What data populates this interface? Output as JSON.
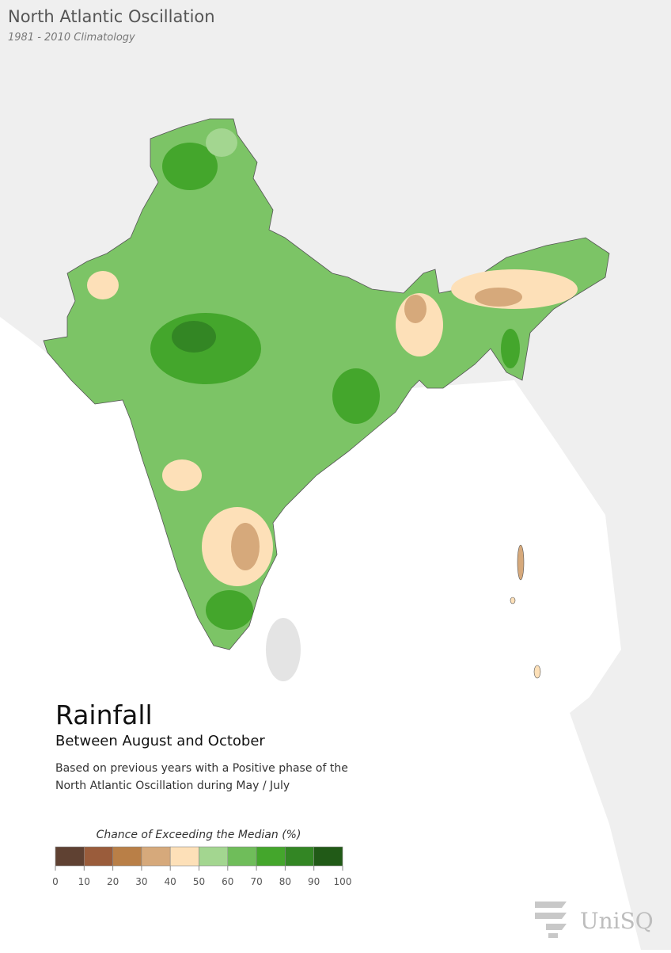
{
  "header": {
    "title": "North Atlantic Oscillation",
    "subtitle": "1981 - 2010 Climatology"
  },
  "panel": {
    "title": "Rainfall",
    "subtitle": "Between August and October",
    "description": [
      "Based on previous years with a Positive phase of the",
      "North Atlantic Oscillation during May / July"
    ]
  },
  "legend": {
    "title": "Chance of Exceeding the Median (%)",
    "colors": [
      "#5f4132",
      "#9a5c3b",
      "#b97f47",
      "#d6a97b",
      "#fde0b8",
      "#a3d690",
      "#6fbd5a",
      "#44a62c",
      "#338624",
      "#215a17"
    ],
    "ticks": [
      0,
      10,
      20,
      30,
      40,
      50,
      60,
      70,
      80,
      90,
      100
    ]
  },
  "logo": {
    "text": "UniSQ"
  }
}
